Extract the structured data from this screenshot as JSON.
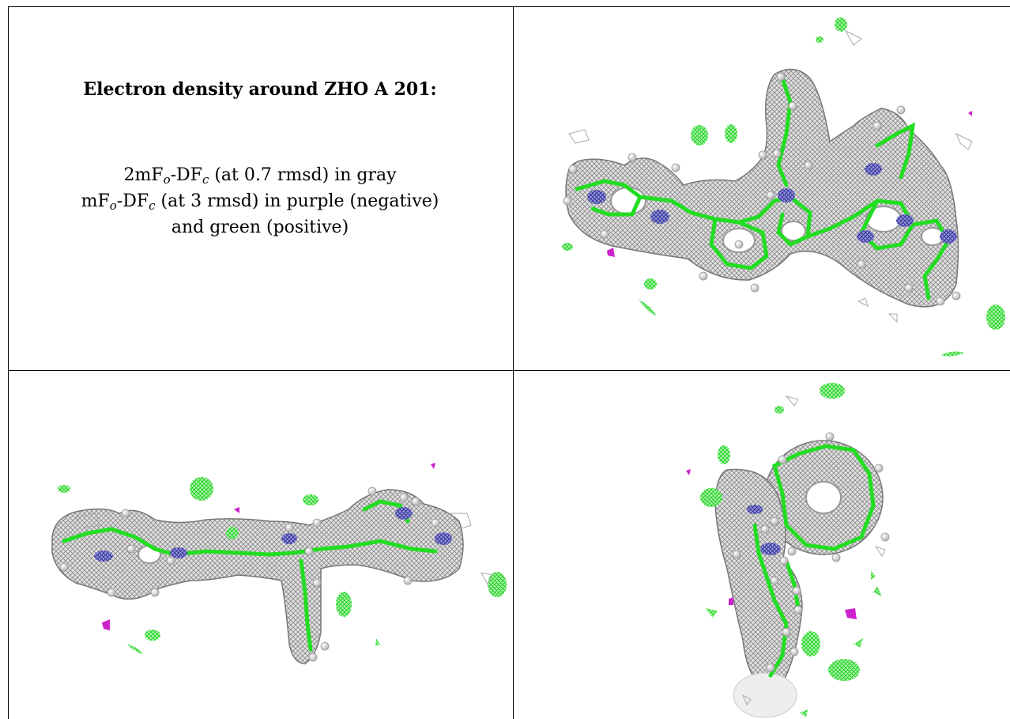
{
  "caption": {
    "title": "Electron density around ZHO A 201:",
    "line1_pre": "2mF",
    "line1_sub1": "o",
    "line1_mid": "-DF",
    "line1_sub2": "c",
    "line1_post": " (at 0.7 rmsd) in gray",
    "line2_pre": "mF",
    "line2_sub1": "o",
    "line2_mid": "-DF",
    "line2_sub2": "c",
    "line2_post": " (at 3 rmsd) in purple (negative)",
    "line3": "and green (positive)"
  },
  "colors": {
    "map_2fofc": "#a6a6a6",
    "map_positive": "#22dd22",
    "map_negative": "#cc22cc",
    "nitrogen": "#5555aa",
    "atom": "#e6e6e6"
  },
  "panels": [
    {
      "view": "top-right"
    },
    {
      "view": "bottom-left"
    },
    {
      "view": "bottom-right"
    }
  ]
}
